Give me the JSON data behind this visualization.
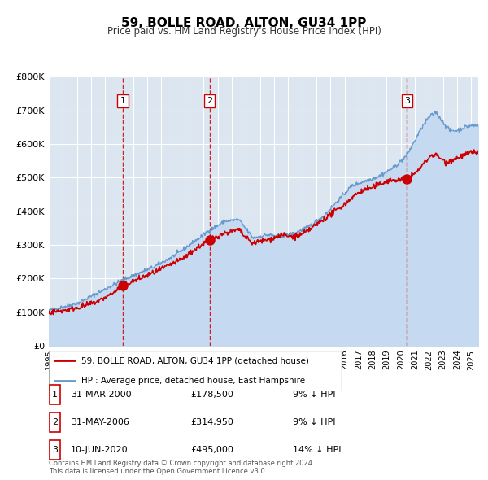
{
  "title": "59, BOLLE ROAD, ALTON, GU34 1PP",
  "subtitle": "Price paid vs. HM Land Registry's House Price Index (HPI)",
  "xlabel": "",
  "ylabel": "",
  "background_color": "#ffffff",
  "plot_bg_color": "#dce6f1",
  "grid_color": "#ffffff",
  "ylim": [
    0,
    800000
  ],
  "yticks": [
    0,
    100000,
    200000,
    300000,
    400000,
    500000,
    600000,
    700000,
    800000
  ],
  "ytick_labels": [
    "£0",
    "£100K",
    "£200K",
    "£300K",
    "£400K",
    "£500K",
    "£600K",
    "£700K",
    "£800K"
  ],
  "sale_color": "#cc0000",
  "hpi_color": "#6699cc",
  "hpi_fill_color": "#c5d9f1",
  "sale_dates": [
    2000.247,
    2006.414,
    2020.44
  ],
  "sale_prices": [
    178500,
    314950,
    495000
  ],
  "sale_labels": [
    "1",
    "2",
    "3"
  ],
  "vline_dates": [
    2000.247,
    2006.414,
    2020.44
  ],
  "xmin": 1995.0,
  "xmax": 2025.5,
  "xticks": [
    1995,
    1996,
    1997,
    1998,
    1999,
    2000,
    2001,
    2002,
    2003,
    2004,
    2005,
    2006,
    2007,
    2008,
    2009,
    2010,
    2011,
    2012,
    2013,
    2014,
    2015,
    2016,
    2017,
    2018,
    2019,
    2020,
    2021,
    2022,
    2023,
    2024,
    2025
  ],
  "legend_sale_label": "59, BOLLE ROAD, ALTON, GU34 1PP (detached house)",
  "legend_hpi_label": "HPI: Average price, detached house, East Hampshire",
  "table_data": [
    {
      "num": "1",
      "date": "31-MAR-2000",
      "price": "£178,500",
      "pct": "9% ↓ HPI"
    },
    {
      "num": "2",
      "date": "31-MAY-2006",
      "price": "£314,950",
      "pct": "9% ↓ HPI"
    },
    {
      "num": "3",
      "date": "10-JUN-2020",
      "price": "£495,000",
      "pct": "14% ↓ HPI"
    }
  ],
  "footer": "Contains HM Land Registry data © Crown copyright and database right 2024.\nThis data is licensed under the Open Government Licence v3.0."
}
